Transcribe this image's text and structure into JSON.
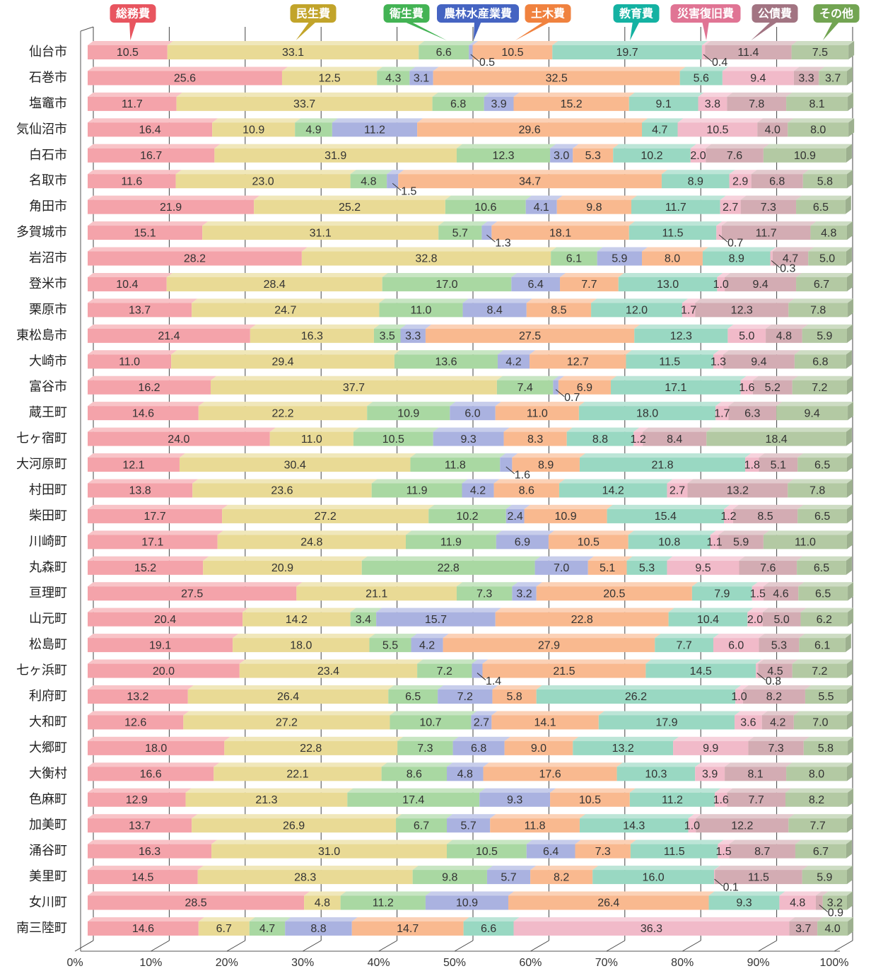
{
  "chart_data": {
    "type": "bar",
    "orientation": "horizontal",
    "stacked": true,
    "categories": [
      "仙台市",
      "石巻市",
      "塩竈市",
      "気仙沼市",
      "白石市",
      "名取市",
      "角田市",
      "多賀城市",
      "岩沼市",
      "登米市",
      "栗原市",
      "東松島市",
      "大崎市",
      "富谷市",
      "蔵王町",
      "七ヶ宿町",
      "大河原町",
      "村田町",
      "柴田町",
      "川崎町",
      "丸森町",
      "亘理町",
      "山元町",
      "松島町",
      "七ヶ浜町",
      "利府町",
      "大和町",
      "大郷町",
      "大衡村",
      "色麻町",
      "加美町",
      "涌谷町",
      "美里町",
      "女川町",
      "南三陸町"
    ],
    "xlim": [
      0,
      100
    ],
    "xticks": [
      {
        "value": 0,
        "label": "0%"
      },
      {
        "value": 10,
        "label": "10%"
      },
      {
        "value": 20,
        "label": "20%"
      },
      {
        "value": 30,
        "label": "30%"
      },
      {
        "value": 40,
        "label": "40%"
      },
      {
        "value": 50,
        "label": "50%"
      },
      {
        "value": 60,
        "label": "60%"
      },
      {
        "value": 70,
        "label": "70%"
      },
      {
        "value": 80,
        "label": "80%"
      },
      {
        "value": 90,
        "label": "90%"
      },
      {
        "value": 100,
        "label": "100%"
      }
    ],
    "grid": true,
    "series": [
      {
        "name": "総務費",
        "color": "#f4a3aa",
        "legend_color": "#e8555f",
        "values": [
          10.5,
          25.6,
          11.7,
          16.4,
          16.7,
          11.6,
          21.9,
          15.1,
          28.2,
          10.4,
          13.7,
          21.4,
          11.0,
          16.2,
          14.6,
          24.0,
          12.1,
          13.8,
          17.7,
          17.1,
          15.2,
          27.5,
          20.4,
          19.1,
          20.0,
          13.2,
          12.6,
          18.0,
          16.6,
          12.9,
          13.7,
          16.3,
          14.5,
          28.5,
          14.6
        ],
        "value_labels": [
          "10.5",
          "25.6",
          "11.7",
          "16.4",
          "16.7",
          "11.6",
          "21.9",
          "15.1",
          "28.2",
          "10.4",
          "13.7",
          "21.4",
          "11.0",
          "16.2",
          "14.6",
          "24.0",
          "12.1",
          "13.8",
          "17.7",
          "17.1",
          "15.2",
          "27.5",
          "20.4",
          "19.1",
          "20.0",
          "13.2",
          "12.6",
          "18.0",
          "16.6",
          "12.9",
          "13.7",
          "16.3",
          "14.5",
          "28.5",
          "14.6"
        ]
      },
      {
        "name": "民生費",
        "color": "#e9da95",
        "legend_color": "#c2a42a",
        "values": [
          33.1,
          12.5,
          33.7,
          10.9,
          31.9,
          23.0,
          25.2,
          31.1,
          32.8,
          28.4,
          24.7,
          16.3,
          29.4,
          37.7,
          22.2,
          11.0,
          30.4,
          23.6,
          27.2,
          24.8,
          20.9,
          21.1,
          14.2,
          18.0,
          23.4,
          26.4,
          27.2,
          22.8,
          22.1,
          21.3,
          26.9,
          31.0,
          28.3,
          4.8,
          6.7
        ],
        "value_labels": [
          "33.1",
          "12.5",
          "33.7",
          "10.9",
          "31.9",
          "23.0",
          "25.2",
          "31.1",
          "32.8",
          "28.4",
          "24.7",
          "16.3",
          "29.4",
          "37.7",
          "22.2",
          "11.0",
          "30.4",
          "23.6",
          "27.2",
          "24.8",
          "20.9",
          "21.1",
          "14.2",
          "18.0",
          "23.4",
          "26.4",
          "27.2",
          "22.8",
          "22.1",
          "21.3",
          "26.9",
          "31.0",
          "28.3",
          "4.8",
          "6.7"
        ]
      },
      {
        "name": "衛生費",
        "color": "#a9d8a2",
        "legend_color": "#43b354",
        "values": [
          6.6,
          4.3,
          6.8,
          4.9,
          12.3,
          4.8,
          10.6,
          5.7,
          6.1,
          17.0,
          11.0,
          3.5,
          13.6,
          7.4,
          10.9,
          10.5,
          11.8,
          11.9,
          10.2,
          11.9,
          22.8,
          7.3,
          3.4,
          5.5,
          7.2,
          6.5,
          10.7,
          7.3,
          8.6,
          17.4,
          6.7,
          10.5,
          9.8,
          11.2,
          4.7
        ],
        "value_labels": [
          "6.6",
          "4.3",
          "6.8",
          "4.9",
          "12.3",
          "4.8",
          "10.6",
          "5.7",
          "6.1",
          "17.0",
          "11.0",
          "3.5",
          "13.6",
          "7.4",
          "10.9",
          "10.5",
          "11.8",
          "11.9",
          "10.2",
          "11.9",
          "22.8",
          "7.3",
          "3.4",
          "5.5",
          "7.2",
          "6.5",
          "10.7",
          "7.3",
          "8.6",
          "17.4",
          "6.7",
          "10.5",
          "9.8",
          "11.2",
          "4.7"
        ]
      },
      {
        "name": "農林水産業費",
        "color": "#aab2e0",
        "legend_color": "#4564c2",
        "values": [
          0.5,
          3.1,
          3.9,
          11.2,
          3.0,
          1.5,
          4.1,
          1.3,
          5.9,
          6.4,
          8.4,
          3.3,
          4.2,
          0.7,
          6.0,
          9.3,
          1.6,
          4.2,
          2.4,
          6.9,
          7.0,
          3.2,
          15.7,
          4.2,
          1.4,
          7.2,
          2.7,
          6.8,
          4.8,
          9.3,
          5.7,
          6.4,
          5.7,
          10.9,
          8.8
        ],
        "value_labels": [
          "0.5",
          "3.1",
          "3.9",
          "11.2",
          "3.0",
          "1.5",
          "4.1",
          "1.3",
          "5.9",
          "6.4",
          "8.4",
          "3.3",
          "4.2",
          "0.7",
          "6.0",
          "9.3",
          "1.6",
          "4.2",
          "2.4",
          "6.9",
          "7.0",
          "3.2",
          "15.7",
          "4.2",
          "1.4",
          "7.2",
          "2.7",
          "6.8",
          "4.8",
          "9.3",
          "5.7",
          "6.4",
          "5.7",
          "10.9",
          "8.8"
        ]
      },
      {
        "name": "土木費",
        "color": "#f9b98f",
        "legend_color": "#f0823f",
        "values": [
          10.5,
          32.5,
          15.2,
          29.6,
          5.3,
          34.7,
          9.8,
          18.1,
          8.0,
          7.7,
          8.5,
          27.5,
          12.7,
          6.9,
          11.0,
          8.3,
          8.9,
          8.6,
          10.9,
          10.5,
          5.1,
          20.5,
          22.8,
          27.9,
          21.5,
          5.8,
          14.1,
          9.0,
          17.6,
          10.5,
          11.8,
          7.3,
          8.2,
          26.4,
          14.7
        ],
        "value_labels": [
          "10.5",
          "32.5",
          "15.2",
          "29.6",
          "5.3",
          "34.7",
          "9.8",
          "18.1",
          "8.0",
          "7.7",
          "8.5",
          "27.5",
          "12.7",
          "6.9",
          "11.0",
          "8.3",
          "8.9",
          "8.6",
          "10.9",
          "10.5",
          "5.1",
          "20.5",
          "22.8",
          "27.9",
          "21.5",
          "5.8",
          "14.1",
          "9.0",
          "17.6",
          "10.5",
          "11.8",
          "7.3",
          "8.2",
          "26.4",
          "14.7"
        ]
      },
      {
        "name": "教育費",
        "color": "#99d8c2",
        "legend_color": "#14b2a2",
        "values": [
          19.7,
          5.6,
          9.1,
          4.7,
          10.2,
          8.9,
          11.7,
          11.5,
          8.9,
          13.0,
          12.0,
          12.3,
          11.5,
          17.1,
          18.0,
          8.8,
          21.8,
          14.2,
          15.4,
          10.8,
          5.3,
          7.9,
          10.4,
          7.7,
          14.5,
          26.2,
          17.9,
          13.2,
          10.3,
          11.2,
          14.3,
          11.5,
          16.0,
          9.3,
          6.6
        ],
        "value_labels": [
          "19.7",
          "5.6",
          "9.1",
          "4.7",
          "10.2",
          "8.9",
          "11.7",
          "11.5",
          "8.9",
          "13.0",
          "12.0",
          "12.3",
          "11.5",
          "17.1",
          "18.0",
          "8.8",
          "21.8",
          "14.2",
          "15.4",
          "10.8",
          "5.3",
          "7.9",
          "10.4",
          "7.7",
          "14.5",
          "26.2",
          "17.9",
          "13.2",
          "10.3",
          "11.2",
          "14.3",
          "11.5",
          "16.0",
          "9.3",
          "6.6"
        ]
      },
      {
        "name": "災害復旧費",
        "color": "#f1bac9",
        "legend_color": "#e07494",
        "values": [
          0.4,
          9.4,
          3.8,
          10.5,
          2.0,
          2.9,
          2.7,
          0.7,
          0.3,
          1.0,
          1.7,
          5.0,
          1.3,
          1.6,
          1.7,
          1.2,
          1.8,
          2.7,
          1.2,
          1.1,
          9.5,
          1.5,
          2.0,
          6.0,
          0.3,
          1.0,
          3.6,
          9.9,
          3.9,
          1.6,
          1.0,
          1.5,
          0.1,
          4.8,
          36.3
        ],
        "value_labels": [
          "0.4",
          "9.4",
          "3.8",
          "10.5",
          "2.0",
          "2.9",
          "2.7",
          "0.7",
          "0.3",
          "1.0",
          "1.7",
          "5.0",
          "1.3",
          "1.6",
          "1.7",
          "1.2",
          "1.8",
          "2.7",
          "1.2",
          "1.1",
          "9.5",
          "1.5",
          "2.0",
          "6.0",
          "0.3",
          "1.0",
          "3.6",
          "9.9",
          "3.9",
          "1.6",
          "1.0",
          "1.5",
          "0.1",
          "4.8",
          "36.3"
        ]
      },
      {
        "name": "公債費",
        "color": "#d3acb3",
        "legend_color": "#a27482",
        "values": [
          11.4,
          3.3,
          7.8,
          4.0,
          7.6,
          6.8,
          7.3,
          11.7,
          4.7,
          9.4,
          12.3,
          4.8,
          9.4,
          5.2,
          6.3,
          8.4,
          5.1,
          13.2,
          8.5,
          5.9,
          7.6,
          4.6,
          5.0,
          5.3,
          4.5,
          8.2,
          4.2,
          7.3,
          8.1,
          7.7,
          12.2,
          8.7,
          11.5,
          0.9,
          3.7
        ],
        "value_labels": [
          "11.4",
          "3.3",
          "7.8",
          "4.0",
          "7.6",
          "6.8",
          "7.3",
          "11.7",
          "4.7",
          "9.4",
          "12.3",
          "4.8",
          "9.4",
          "5.2",
          "6.3",
          "8.4",
          "5.1",
          "13.2",
          "8.5",
          "5.9",
          "7.6",
          "4.6",
          "5.0",
          "5.3",
          "4.5",
          "8.2",
          "4.2",
          "7.3",
          "8.1",
          "7.7",
          "12.2",
          "8.7",
          "11.5",
          "0.9",
          "3.7"
        ]
      },
      {
        "name": "その他",
        "color": "#b3c9a3",
        "legend_color": "#72a452",
        "values": [
          7.5,
          3.7,
          8.1,
          8.0,
          10.9,
          5.8,
          6.5,
          4.8,
          5.0,
          6.7,
          7.8,
          5.9,
          6.8,
          7.2,
          9.4,
          18.4,
          6.5,
          7.8,
          6.5,
          11.0,
          6.5,
          6.5,
          6.2,
          6.1,
          7.2,
          5.5,
          7.0,
          5.8,
          8.0,
          8.2,
          7.7,
          6.7,
          5.9,
          3.2,
          4.0
        ],
        "value_labels": [
          "7.5",
          "3.7",
          "8.1",
          "8.0",
          "10.9",
          "5.8",
          "6.5",
          "4.8",
          "5.0",
          "6.7",
          "7.8",
          "5.9",
          "6.8",
          "7.2",
          "9.4",
          "18.4",
          "6.5",
          "7.8",
          "6.5",
          "11.0",
          "6.5",
          "6.5",
          "6.2",
          "6.1",
          "7.2",
          "5.5",
          "7.0",
          "5.8",
          "8.0",
          "8.2",
          "7.7",
          "6.7",
          "5.9",
          "3.2",
          "4.0"
        ]
      }
    ]
  }
}
